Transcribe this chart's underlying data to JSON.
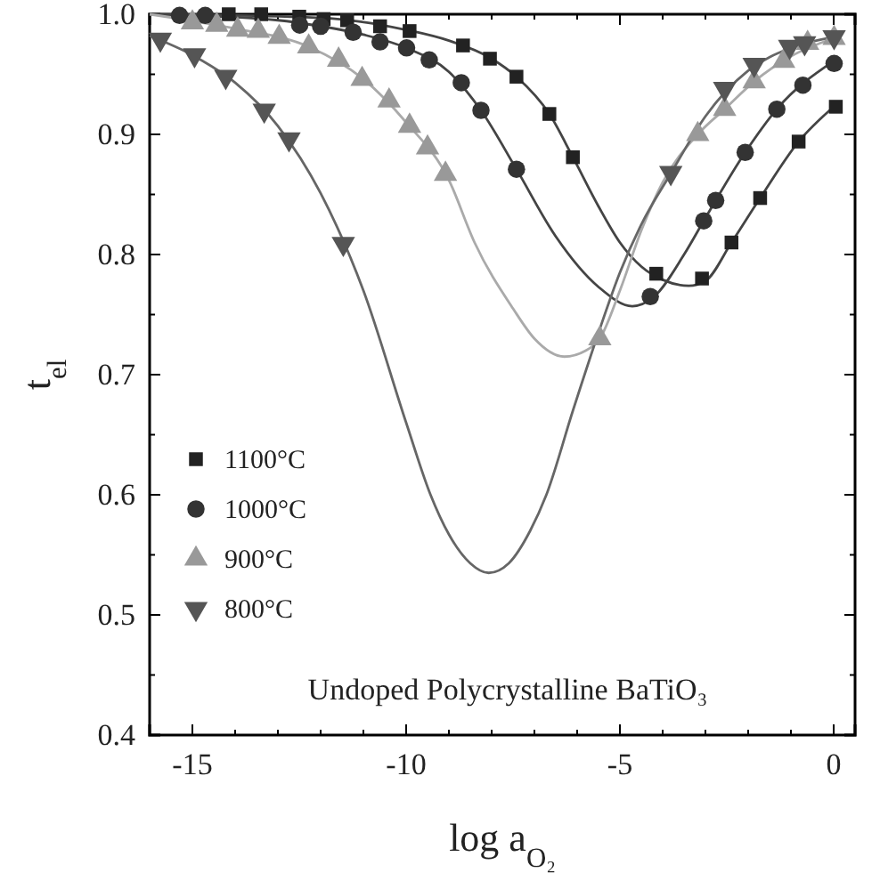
{
  "chart_data": {
    "type": "scatter",
    "xlabel": "log a$_{O₂}$",
    "ylabel": "t$_{el}$",
    "annotations": [
      "Undoped Polycrystalline BaTiO₃"
    ],
    "xlim": [
      -16,
      0.5
    ],
    "ylim": [
      0.4,
      1.0
    ],
    "xticks": [
      -15,
      {
        "value": -14,
        "label": null
      },
      {
        "value": -13,
        "label": null
      },
      {
        "value": -12,
        "label": null
      },
      {
        "value": -11,
        "label": null
      },
      -10,
      {
        "value": -9,
        "label": null
      },
      {
        "value": -8,
        "label": null
      },
      {
        "value": -7,
        "label": null
      },
      {
        "value": -6,
        "label": null
      },
      -5,
      {
        "value": -4,
        "label": null
      },
      {
        "value": -3,
        "label": null
      },
      {
        "value": -2,
        "label": null
      },
      {
        "value": -1,
        "label": null
      },
      0
    ],
    "yticks": [
      0.4,
      {
        "value": 0.45,
        "label": null
      },
      0.5,
      {
        "value": 0.55,
        "label": null
      },
      0.6,
      {
        "value": 0.65,
        "label": null
      },
      0.7,
      {
        "value": 0.75,
        "label": null
      },
      0.8,
      {
        "value": 0.85,
        "label": null
      },
      0.9,
      {
        "value": 0.95,
        "label": null
      },
      {
        "value": 1.0,
        "label": "1.0"
      }
    ],
    "grid": false,
    "legend": "left",
    "series": [
      {
        "type": "line",
        "color": "#444444",
        "x": [
          -16,
          -12,
          -10,
          -9,
          -8,
          -7.42,
          -6.65,
          -6.1,
          -5.5,
          -5,
          -4.5,
          -4,
          -3.39,
          -3,
          -2.39,
          -1.72,
          -0.82,
          0
        ],
        "values": [
          1.0,
          0.997,
          0.987,
          0.978,
          0.963,
          0.948,
          0.917,
          0.881,
          0.84,
          0.81,
          0.79,
          0.779,
          0.774,
          0.778,
          0.81,
          0.847,
          0.894,
          0.923
        ]
      },
      {
        "type": "line",
        "color": "#444444",
        "x": [
          -16,
          -13,
          -12,
          -11,
          -10,
          -9,
          -8.25,
          -7.42,
          -6.5,
          -5.5,
          -4.71,
          -4.2,
          -3.5,
          -3.04,
          -2.07,
          -1.33,
          0
        ],
        "values": [
          1.0,
          0.995,
          0.99,
          0.983,
          0.972,
          0.952,
          0.92,
          0.871,
          0.815,
          0.773,
          0.757,
          0.765,
          0.8,
          0.828,
          0.885,
          0.921,
          0.961
        ]
      },
      {
        "type": "line",
        "color": "#aaaaaa",
        "x": [
          -16,
          -14,
          -12.28,
          -11,
          -10,
          -9,
          -8.4,
          -7.5,
          -7,
          -6.3,
          -5.8,
          -5.47,
          -5,
          -4.5,
          -4,
          -3.18,
          -2.55,
          -1.86,
          -1,
          0
        ],
        "values": [
          1.0,
          0.988,
          0.973,
          0.946,
          0.91,
          0.862,
          0.81,
          0.755,
          0.73,
          0.715,
          0.72,
          0.73,
          0.77,
          0.82,
          0.86,
          0.9,
          0.921,
          0.944,
          0.965,
          0.98
        ]
      },
      {
        "type": "line",
        "color": "#666666",
        "x": [
          -16,
          -15,
          -14,
          -13,
          -12,
          -11,
          -10,
          -9.43,
          -9,
          -8.5,
          -8.07,
          -7.6,
          -7.1,
          -6.72,
          -6.1,
          -5.5,
          -5,
          -4.5,
          -3.8,
          -3,
          -2,
          -1,
          0
        ],
        "values": [
          0.982,
          0.966,
          0.943,
          0.907,
          0.851,
          0.77,
          0.66,
          0.6,
          0.567,
          0.543,
          0.535,
          0.543,
          0.57,
          0.6,
          0.67,
          0.735,
          0.785,
          0.825,
          0.868,
          0.915,
          0.953,
          0.972,
          0.981
        ]
      },
      {
        "name": "1100°C",
        "color": "#222222",
        "marker": "square",
        "x": [
          -14.15,
          -13.39,
          -12.5,
          -11.93,
          -11.38,
          -10.61,
          -9.92,
          -8.67,
          -8.04,
          -7.42,
          -6.65,
          -6.1,
          -4.15,
          -3.08,
          -2.39,
          -1.72,
          -0.82,
          0.05
        ],
        "values": [
          1.0,
          1.0,
          0.998,
          0.996,
          0.995,
          0.99,
          0.986,
          0.974,
          0.963,
          0.948,
          0.917,
          0.881,
          0.784,
          0.78,
          0.81,
          0.847,
          0.894,
          0.923
        ]
      },
      {
        "name": "1000°C",
        "color": "#333333",
        "marker": "circle",
        "x": [
          -15.3,
          -14.7,
          -12.49,
          -12.0,
          -11.24,
          -10.61,
          -9.99,
          -9.46,
          -8.71,
          -8.25,
          -7.42,
          -4.29,
          -3.04,
          -2.76,
          -2.07,
          -1.33,
          -0.72,
          0.01
        ],
        "values": [
          0.999,
          0.999,
          0.991,
          0.99,
          0.985,
          0.977,
          0.972,
          0.962,
          0.943,
          0.92,
          0.871,
          0.765,
          0.828,
          0.845,
          0.885,
          0.921,
          0.941,
          0.959
        ]
      },
      {
        "name": "900°C",
        "color": "#999999",
        "marker": "triangle",
        "x": [
          -15.0,
          -14.43,
          -13.94,
          -13.46,
          -12.97,
          -12.28,
          -11.58,
          -11.03,
          -10.4,
          -9.92,
          -9.5,
          -9.08,
          -5.47,
          -3.18,
          -2.55,
          -1.86,
          -1.17,
          -0.61,
          0.01
        ],
        "values": [
          0.993,
          0.991,
          0.987,
          0.986,
          0.981,
          0.973,
          0.962,
          0.946,
          0.928,
          0.907,
          0.889,
          0.867,
          0.73,
          0.9,
          0.921,
          0.944,
          0.961,
          0.976,
          0.98
        ]
      },
      {
        "name": "800°C",
        "color": "#555555",
        "marker": "triangle-down",
        "x": [
          -15.75,
          -14.95,
          -14.22,
          -13.32,
          -12.74,
          -11.47,
          -3.81,
          -2.55,
          -1.86,
          -1.03,
          -0.68,
          0.01
        ],
        "values": [
          0.979,
          0.966,
          0.948,
          0.92,
          0.896,
          0.809,
          0.868,
          0.938,
          0.958,
          0.973,
          0.976,
          0.981
        ]
      }
    ]
  }
}
